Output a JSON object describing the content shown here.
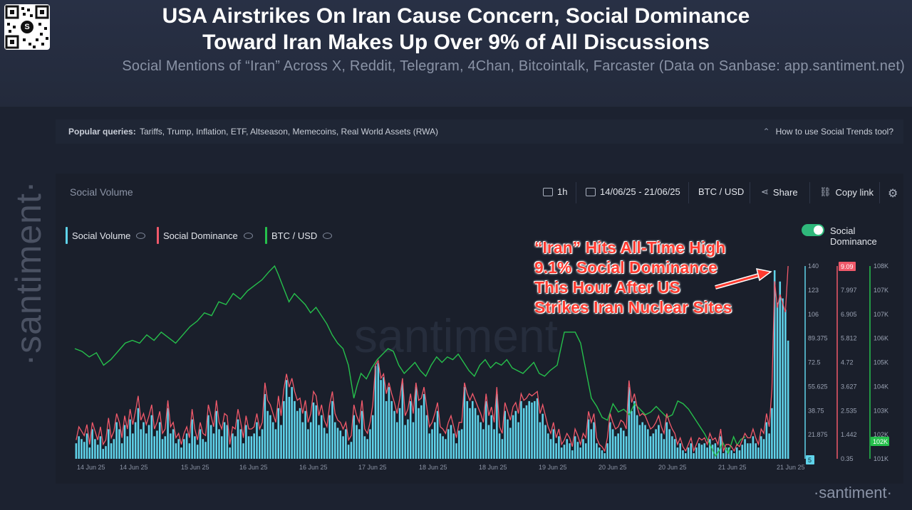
{
  "header": {
    "title_line1": "USA Airstrikes On Iran Cause Concern, Social Dominance",
    "title_line2": "Toward Iran Makes Up Over 9% of All Discussions",
    "subtitle": "Social Mentions of “Iran” Across X, Reddit, Telegram, 4Chan, Bitcointalk, Farcaster (Data on Sanbase: app.santiment.net)"
  },
  "queries": {
    "label": "Popular queries:",
    "items": "Tariffs, Trump, Inflation, ETF, Altseason, Memecoins, Real World Assets (RWA)",
    "howto": "How to use Social Trends tool?"
  },
  "side_logo": "·santiment·",
  "panel": {
    "title": "Social Volume",
    "interval": "1h",
    "date_range": "14/06/25 - 21/06/25",
    "pair": "BTC / USD",
    "share": "Share",
    "copy_link": "Copy link"
  },
  "legend": {
    "social_volume": "Social Volume",
    "social_dominance": "Social Dominance",
    "btc_usd": "BTC / USD",
    "toggle_label": "Social Dominance"
  },
  "annotation": {
    "line1": "“Iran” Hits All-Time High",
    "line2": "9.1% Social Dominance",
    "line3": "This Hour  After US",
    "line4": "Strikes Iran Nuclear Sites"
  },
  "watermark": "·santiment·",
  "colors": {
    "social_volume": "#5fd3ea",
    "social_dominance": "#f0596a",
    "btc_usd": "#26c04c",
    "annotation": "#ff3b30"
  },
  "chart_data": {
    "type": "bar",
    "title": "Social Volume",
    "x_tick_labels": [
      "14 Jun 25",
      "14 Jun 25",
      "15 Jun 25",
      "16 Jun 25",
      "16 Jun 25",
      "17 Jun 25",
      "18 Jun 25",
      "18 Jun 25",
      "19 Jun 25",
      "20 Jun 25",
      "20 Jun 25",
      "21 Jun 25",
      "21 Jun 25"
    ],
    "axes": {
      "social_volume": {
        "ticks": [
          "140",
          "123",
          "106",
          "89.375",
          "72.5",
          "55.625",
          "38.75",
          "21.875",
          "5"
        ],
        "range": [
          5,
          140
        ],
        "current_value": "5"
      },
      "social_dominance": {
        "ticks": [
          "9.09",
          "7.997",
          "6.905",
          "5.812",
          "4.72",
          "3.627",
          "2.535",
          "1.442",
          "0.35"
        ],
        "range": [
          0.35,
          9.09
        ],
        "unit": "%"
      },
      "btc_usd": {
        "ticks": [
          "108K",
          "107K",
          "107K",
          "106K",
          "105K",
          "104K",
          "103K",
          "102K",
          "101K"
        ],
        "range": [
          101000,
          108000
        ],
        "current_value": "102K"
      }
    },
    "series": [
      {
        "name": "Social Volume",
        "type": "bar",
        "values": [
          15,
          20,
          18,
          16,
          22,
          12,
          25,
          18,
          14,
          20,
          11,
          13,
          25,
          15,
          18,
          30,
          25,
          15,
          28,
          20,
          32,
          22,
          30,
          40,
          25,
          30,
          22,
          28,
          35,
          20,
          24,
          30,
          18,
          20,
          40,
          22,
          25,
          15,
          18,
          12,
          18,
          22,
          15,
          32,
          20,
          14,
          25,
          18,
          16,
          35,
          28,
          22,
          38,
          25,
          20,
          30,
          28,
          12,
          22,
          20,
          32,
          25,
          15,
          28,
          20,
          20,
          22,
          30,
          20,
          25,
          50,
          38,
          35,
          30,
          25,
          40,
          28,
          45,
          60,
          48,
          55,
          45,
          38,
          40,
          30,
          38,
          25,
          30,
          44,
          42,
          28,
          35,
          26,
          22,
          35,
          45,
          30,
          26,
          24,
          20,
          25,
          14,
          16,
          35,
          28,
          25,
          38,
          20,
          18,
          25,
          35,
          70,
          72,
          60,
          62,
          45,
          55,
          45,
          38,
          30,
          40,
          58,
          28,
          32,
          45,
          30,
          55,
          40,
          42,
          50,
          35,
          22,
          25,
          30,
          38,
          22,
          20,
          18,
          25,
          28,
          22,
          15,
          24,
          25,
          55,
          45,
          40,
          45,
          40,
          35,
          30,
          25,
          45,
          28,
          35,
          25,
          50,
          22,
          18,
          38,
          32,
          26,
          35,
          38,
          30,
          45,
          40,
          42,
          45,
          44,
          45,
          47,
          30,
          36,
          28,
          22,
          18,
          25,
          15,
          20,
          12,
          14,
          18,
          15,
          10,
          20,
          16,
          12,
          18,
          15,
          32,
          25,
          30,
          15,
          12,
          10,
          8,
          15,
          30,
          25,
          20,
          22,
          26,
          24,
          20,
          55,
          38,
          45,
          35,
          28,
          30,
          28,
          25,
          20,
          22,
          25,
          28,
          22,
          18,
          30,
          25,
          20,
          18,
          12,
          15,
          10,
          8,
          12,
          15,
          8,
          12,
          15,
          14,
          15,
          12,
          18,
          14,
          15,
          12,
          20,
          8,
          12,
          12,
          10,
          8,
          12,
          10,
          14,
          18,
          15,
          15,
          20,
          15,
          12,
          20,
          18,
          30,
          22,
          40,
          138,
          115,
          130,
          118,
          110,
          88
        ]
      },
      {
        "name": "Social Dominance",
        "type": "line",
        "values": [
          1.2,
          1.8,
          1.6,
          1.4,
          1.9,
          1.0,
          2.0,
          1.6,
          1.2,
          1.8,
          1.0,
          1.2,
          2.2,
          1.3,
          1.6,
          2.4,
          2.0,
          1.3,
          2.3,
          1.7,
          2.6,
          1.9,
          2.5,
          3.2,
          2.1,
          2.4,
          1.9,
          2.3,
          2.8,
          1.7,
          2.0,
          2.5,
          1.5,
          1.7,
          3.0,
          1.8,
          2.0,
          1.3,
          1.5,
          1.0,
          1.5,
          1.8,
          1.3,
          2.6,
          1.7,
          1.2,
          2.0,
          1.5,
          1.4,
          2.8,
          2.3,
          1.8,
          3.0,
          2.0,
          1.7,
          2.4,
          2.3,
          1.0,
          1.8,
          1.7,
          2.6,
          2.0,
          1.3,
          2.3,
          1.7,
          1.7,
          1.8,
          2.4,
          1.7,
          2.0,
          3.8,
          3.0,
          2.8,
          2.4,
          2.0,
          3.2,
          2.3,
          3.5,
          4.2,
          3.6,
          4.0,
          3.4,
          3.0,
          3.1,
          2.4,
          3.0,
          2.0,
          2.4,
          3.4,
          3.2,
          2.3,
          2.8,
          2.1,
          1.8,
          2.8,
          3.4,
          2.4,
          2.1,
          2.0,
          1.7,
          2.0,
          1.2,
          1.4,
          2.8,
          2.3,
          2.0,
          3.0,
          1.7,
          1.5,
          2.0,
          2.8,
          4.6,
          4.8,
          4.0,
          4.2,
          3.3,
          3.8,
          3.3,
          2.9,
          2.4,
          3.1,
          4.0,
          2.3,
          2.6,
          3.3,
          2.4,
          3.8,
          3.0,
          3.1,
          3.6,
          2.7,
          1.8,
          2.0,
          2.4,
          2.9,
          1.8,
          1.7,
          1.5,
          2.0,
          2.3,
          1.8,
          1.3,
          2.0,
          2.0,
          3.8,
          3.3,
          3.0,
          3.3,
          3.0,
          2.7,
          2.4,
          2.0,
          3.3,
          2.3,
          2.7,
          2.0,
          3.6,
          1.8,
          1.5,
          2.9,
          2.5,
          2.1,
          2.7,
          2.9,
          2.4,
          3.3,
          3.0,
          3.1,
          3.3,
          3.2,
          3.3,
          3.4,
          2.4,
          2.8,
          2.3,
          1.8,
          1.5,
          2.0,
          1.3,
          1.7,
          1.0,
          1.2,
          1.5,
          1.3,
          0.9,
          1.7,
          1.4,
          1.0,
          1.5,
          1.3,
          2.5,
          2.0,
          2.4,
          1.3,
          1.0,
          0.9,
          0.7,
          1.3,
          2.4,
          2.0,
          1.7,
          1.8,
          2.1,
          2.0,
          1.7,
          3.9,
          2.9,
          3.3,
          2.7,
          2.3,
          2.4,
          2.3,
          2.0,
          1.7,
          1.8,
          2.0,
          2.3,
          1.8,
          1.5,
          2.4,
          2.0,
          1.7,
          1.5,
          1.0,
          1.3,
          0.9,
          0.7,
          1.0,
          1.3,
          0.7,
          1.0,
          1.3,
          1.2,
          1.3,
          1.0,
          1.5,
          1.2,
          1.3,
          1.0,
          1.7,
          0.7,
          1.0,
          1.0,
          0.9,
          0.7,
          1.0,
          0.9,
          1.2,
          1.5,
          1.3,
          1.3,
          1.7,
          1.3,
          1.0,
          1.7,
          1.5,
          2.4,
          1.8,
          3.5,
          8.4,
          7.2,
          7.8,
          7.4,
          7.0,
          9.09
        ]
      },
      {
        "name": "BTC / USD",
        "type": "line",
        "points": [
          [
            0,
            105000
          ],
          [
            8,
            104900
          ],
          [
            16,
            104700
          ],
          [
            24,
            104850
          ],
          [
            32,
            104400
          ],
          [
            40,
            104600
          ],
          [
            48,
            104900
          ],
          [
            56,
            105200
          ],
          [
            64,
            105300
          ],
          [
            72,
            105200
          ],
          [
            80,
            105500
          ],
          [
            88,
            105300
          ],
          [
            96,
            105600
          ],
          [
            104,
            105400
          ],
          [
            112,
            105200
          ],
          [
            120,
            105500
          ],
          [
            128,
            105800
          ],
          [
            136,
            106000
          ],
          [
            144,
            106300
          ],
          [
            152,
            106200
          ],
          [
            160,
            106700
          ],
          [
            168,
            106600
          ],
          [
            176,
            107000
          ],
          [
            184,
            106800
          ],
          [
            192,
            107100
          ],
          [
            200,
            107300
          ],
          [
            208,
            107500
          ],
          [
            216,
            107800
          ],
          [
            222,
            108000
          ],
          [
            226,
            107700
          ],
          [
            232,
            107200
          ],
          [
            238,
            106700
          ],
          [
            244,
            107000
          ],
          [
            250,
            106800
          ],
          [
            256,
            106600
          ],
          [
            262,
            106300
          ],
          [
            268,
            106500
          ],
          [
            274,
            106200
          ],
          [
            280,
            105900
          ],
          [
            286,
            105500
          ],
          [
            292,
            105200
          ],
          [
            298,
            105000
          ],
          [
            304,
            104400
          ],
          [
            310,
            103200
          ],
          [
            314,
            103700
          ],
          [
            318,
            104100
          ],
          [
            324,
            103900
          ],
          [
            330,
            104300
          ],
          [
            336,
            104600
          ],
          [
            342,
            104800
          ],
          [
            348,
            105000
          ],
          [
            354,
            104900
          ],
          [
            360,
            104400
          ],
          [
            366,
            104100
          ],
          [
            372,
            104300
          ],
          [
            378,
            104500
          ],
          [
            384,
            104200
          ],
          [
            390,
            104000
          ],
          [
            396,
            104400
          ],
          [
            402,
            104700
          ],
          [
            408,
            104500
          ],
          [
            414,
            104700
          ],
          [
            420,
            104600
          ],
          [
            426,
            104800
          ],
          [
            432,
            104500
          ],
          [
            438,
            104200
          ],
          [
            444,
            104000
          ],
          [
            450,
            104400
          ],
          [
            456,
            104600
          ],
          [
            462,
            104300
          ],
          [
            468,
            104500
          ],
          [
            474,
            104400
          ],
          [
            480,
            104600
          ],
          [
            486,
            104300
          ],
          [
            492,
            104200
          ],
          [
            498,
            104100
          ],
          [
            504,
            104300
          ],
          [
            510,
            104500
          ],
          [
            516,
            104100
          ],
          [
            522,
            104000
          ],
          [
            528,
            104200
          ],
          [
            536,
            104400
          ],
          [
            544,
            105600
          ],
          [
            550,
            105600
          ],
          [
            556,
            105600
          ],
          [
            562,
            105200
          ],
          [
            568,
            104200
          ],
          [
            574,
            103200
          ],
          [
            580,
            102900
          ],
          [
            586,
            102500
          ],
          [
            592,
            102400
          ],
          [
            598,
            103000
          ],
          [
            604,
            102700
          ],
          [
            610,
            102800
          ],
          [
            616,
            102600
          ],
          [
            622,
            103000
          ],
          [
            628,
            102800
          ],
          [
            634,
            102600
          ],
          [
            640,
            102700
          ],
          [
            646,
            102900
          ],
          [
            652,
            102700
          ],
          [
            658,
            102500
          ],
          [
            664,
            102600
          ],
          [
            670,
            103100
          ],
          [
            676,
            103000
          ],
          [
            682,
            102800
          ],
          [
            688,
            102500
          ],
          [
            694,
            102200
          ],
          [
            700,
            101900
          ],
          [
            706,
            101500
          ],
          [
            712,
            101100
          ],
          [
            716,
            101300
          ],
          [
            720,
            101600
          ],
          [
            726,
            101200
          ],
          [
            732,
            101800
          ],
          [
            736,
            101500
          ],
          [
            740,
            101700
          ],
          [
            745,
            101800
          ]
        ]
      }
    ],
    "legend_placement": "top-left"
  }
}
